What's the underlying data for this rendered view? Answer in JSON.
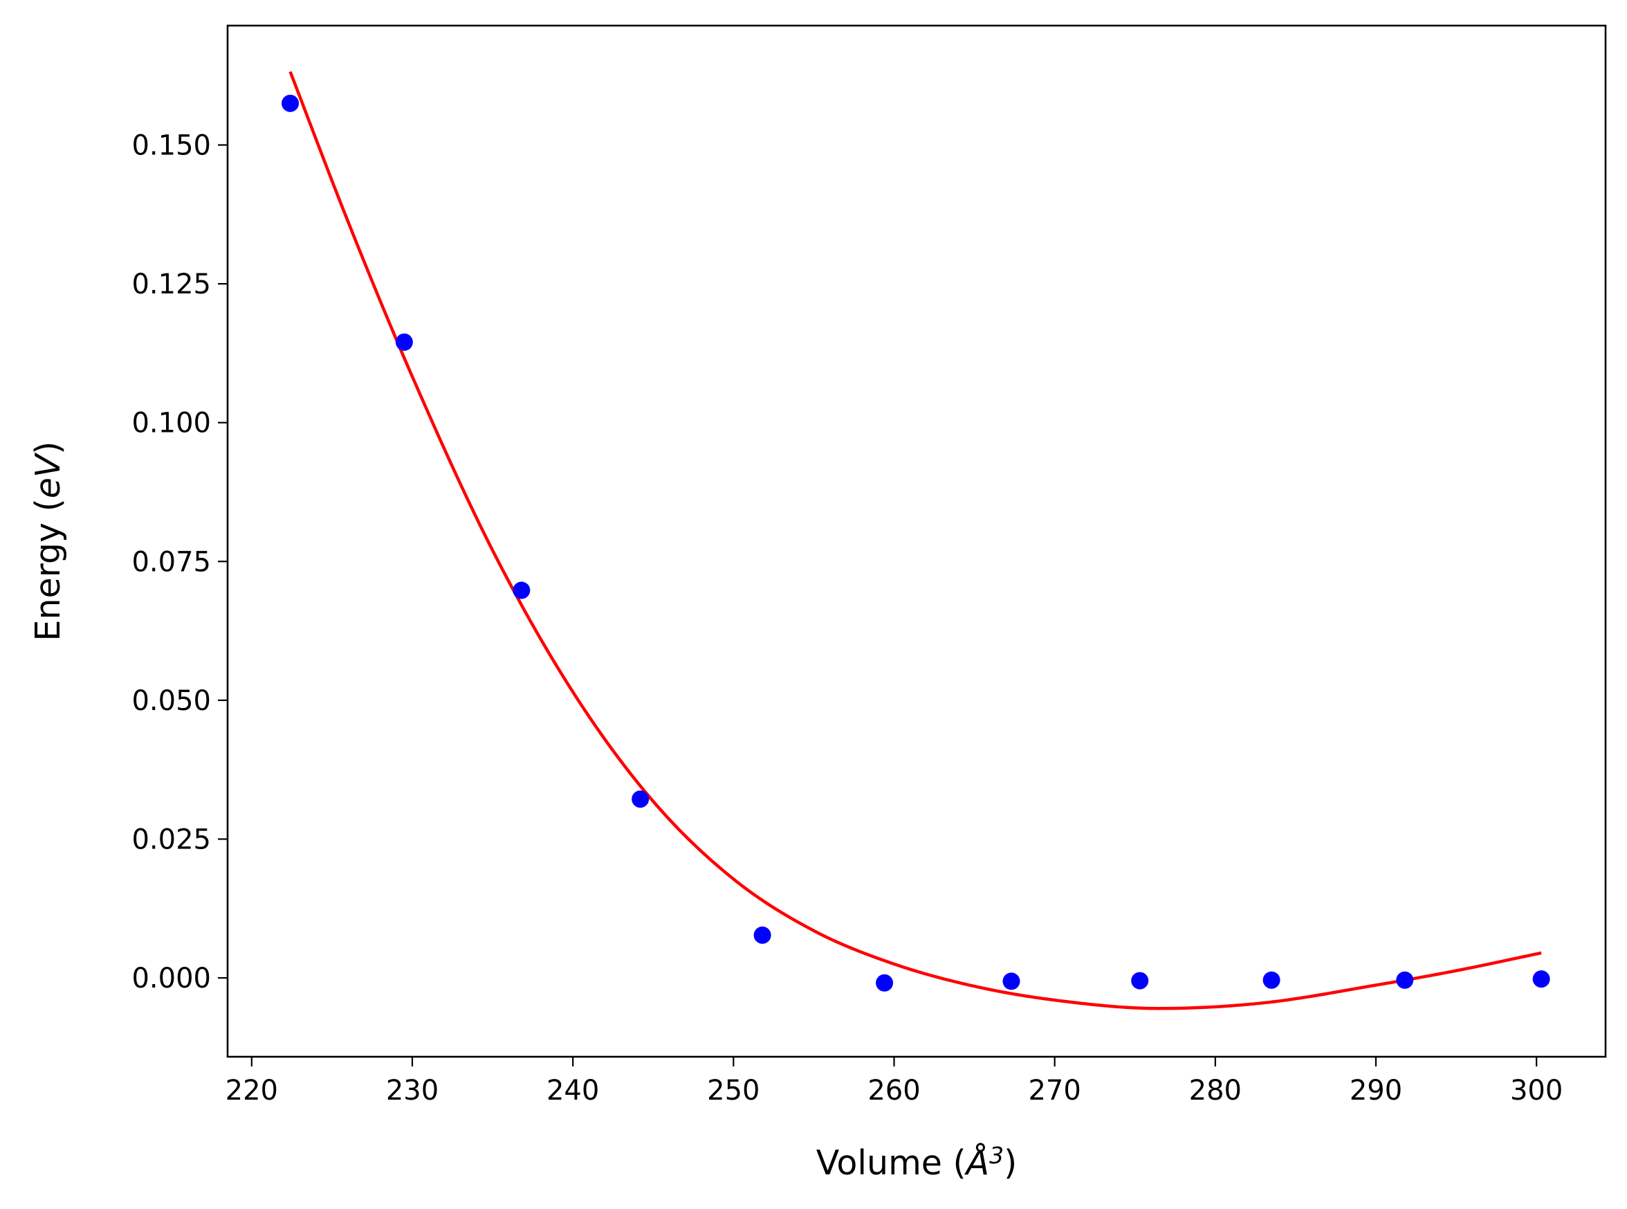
{
  "chart_data": {
    "type": "scatter",
    "xlabel": {
      "prefix": "Volume (",
      "unit": "Å",
      "power": "3",
      "suffix": ")"
    },
    "ylabel": {
      "prefix": "Energy (",
      "unit": "eV",
      "suffix": ")"
    },
    "xlim": [
      218.5,
      304.3
    ],
    "ylim": [
      -0.0142,
      0.1715
    ],
    "x_ticks": [
      220,
      230,
      240,
      250,
      260,
      270,
      280,
      290,
      300
    ],
    "x_tick_labels": [
      "220",
      "230",
      "240",
      "250",
      "260",
      "270",
      "280",
      "290",
      "300"
    ],
    "y_ticks": [
      0.0,
      0.025,
      0.05,
      0.075,
      0.1,
      0.125,
      0.15
    ],
    "y_tick_labels": [
      "0.000",
      "0.025",
      "0.050",
      "0.075",
      "0.100",
      "0.125",
      "0.150"
    ],
    "grid": false,
    "series": [
      {
        "kind": "scatter",
        "color": "#0000ff",
        "x": [
          222.4,
          229.5,
          236.8,
          244.2,
          251.8,
          259.4,
          267.3,
          275.3,
          283.5,
          291.8,
          300.3
        ],
        "y": [
          0.1575,
          0.1145,
          0.0698,
          0.0322,
          0.0077,
          -0.0009,
          -0.0006,
          -0.0005,
          -0.0004,
          -0.0004,
          -0.0002
        ]
      },
      {
        "kind": "line",
        "color": "#ff0000",
        "x": [
          222.4,
          226.0,
          230.0,
          235.0,
          240.0,
          245.0,
          250.0,
          255.0,
          260.0,
          265.0,
          270.0,
          276.5,
          283.0,
          290.0,
          295.0,
          300.3
        ],
        "y": [
          0.1632,
          0.1362,
          0.1083,
          0.077,
          0.0515,
          0.0318,
          0.0178,
          0.0085,
          0.0025,
          -0.0015,
          -0.004,
          -0.0055,
          -0.0045,
          -0.0013,
          0.0013,
          0.0045
        ]
      }
    ]
  }
}
